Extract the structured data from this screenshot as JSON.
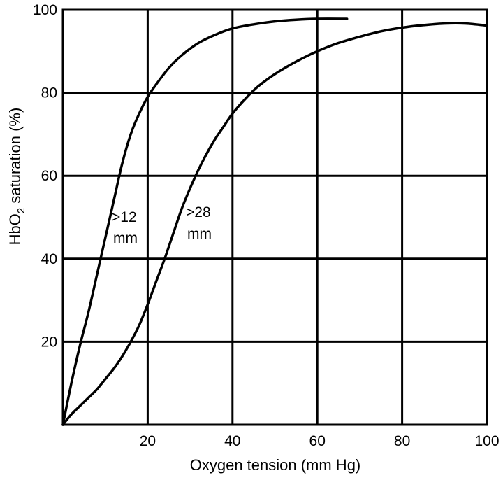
{
  "chart_data": {
    "type": "line",
    "title": "",
    "xlabel": "Oxygen tension (mm Hg)",
    "ylabel_parts": [
      "HbO",
      "2",
      " saturation (%)"
    ],
    "xlim": [
      0,
      100
    ],
    "ylim": [
      0,
      100
    ],
    "x_ticks": [
      20,
      40,
      60,
      80,
      100
    ],
    "y_ticks": [
      20,
      40,
      60,
      80,
      100
    ],
    "grid": true,
    "legend": "none",
    "series": [
      {
        "label_lines": [
          ">12",
          "mm"
        ],
        "x": [
          0,
          2,
          4,
          6,
          8,
          10,
          12,
          14,
          16,
          18,
          20,
          22,
          25,
          28,
          32,
          36,
          40,
          45,
          50,
          55,
          60,
          67
        ],
        "y": [
          0,
          10,
          19,
          27,
          36,
          45,
          54,
          63,
          70,
          75,
          79,
          82,
          86,
          89,
          92,
          94,
          95.5,
          96.5,
          97.2,
          97.6,
          97.8,
          97.8
        ]
      },
      {
        "label_lines": [
          ">28",
          "mm"
        ],
        "x": [
          0,
          2,
          4,
          6,
          8,
          10,
          12,
          14,
          16,
          18,
          20,
          22,
          24,
          26,
          28,
          30,
          32,
          34,
          36,
          38,
          40,
          43,
          46,
          50,
          55,
          60,
          65,
          70,
          75,
          80,
          85,
          90,
          95,
          100
        ],
        "y": [
          0,
          2.5,
          4.5,
          6.5,
          8.5,
          11,
          13.5,
          16.5,
          20,
          24,
          29,
          34.5,
          40,
          46,
          52,
          57,
          61.5,
          65.5,
          69,
          72,
          75,
          78.5,
          81.5,
          84.5,
          87.5,
          90,
          92,
          93.5,
          94.8,
          95.7,
          96.3,
          96.7,
          96.7,
          96.2
        ]
      }
    ]
  }
}
